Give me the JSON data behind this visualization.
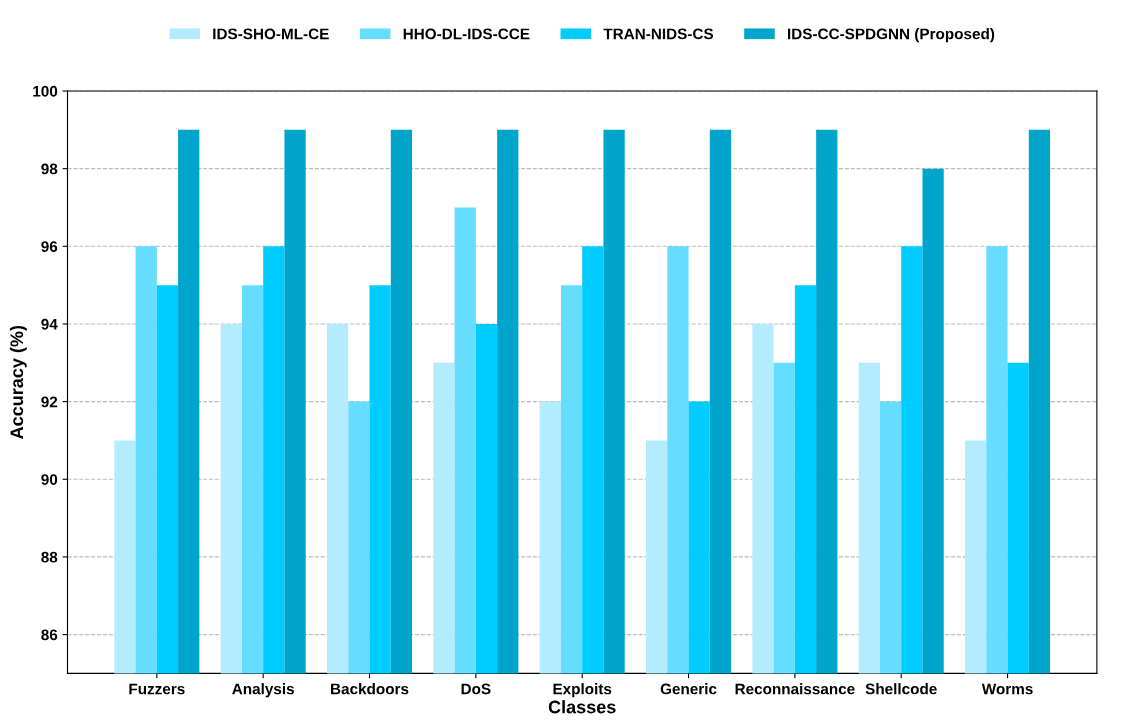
{
  "chart_data": {
    "type": "bar",
    "xlabel": "Classes",
    "ylabel": "Accuracy (%)",
    "categories": [
      "Fuzzers",
      "Analysis",
      "Backdoors",
      "DoS",
      "Exploits",
      "Generic",
      "Reconnaissance",
      "Shellcode",
      "Worms"
    ],
    "series": [
      {
        "name": "IDS-SHO-ML-CE",
        "color": "#b3ecff",
        "values": [
          91,
          94,
          94,
          93,
          92,
          91,
          94,
          93,
          91
        ]
      },
      {
        "name": "HHO-DL-IDS-CCE",
        "color": "#66ddff",
        "values": [
          96,
          95,
          92,
          97,
          95,
          96,
          93,
          92,
          96
        ]
      },
      {
        "name": "TRAN-NIDS-CS",
        "color": "#00ccff",
        "values": [
          95,
          96,
          95,
          94,
          96,
          92,
          95,
          96,
          93
        ]
      },
      {
        "name": "IDS-CC-SPDGNN (Proposed)",
        "color": "#00a5cc",
        "values": [
          99,
          99,
          99,
          99,
          99,
          99,
          99,
          98,
          99
        ]
      }
    ],
    "ylim": [
      85,
      100
    ],
    "yticks": [
      86,
      88,
      90,
      92,
      94,
      96,
      98,
      100
    ],
    "grid": "y",
    "legend": "top"
  }
}
